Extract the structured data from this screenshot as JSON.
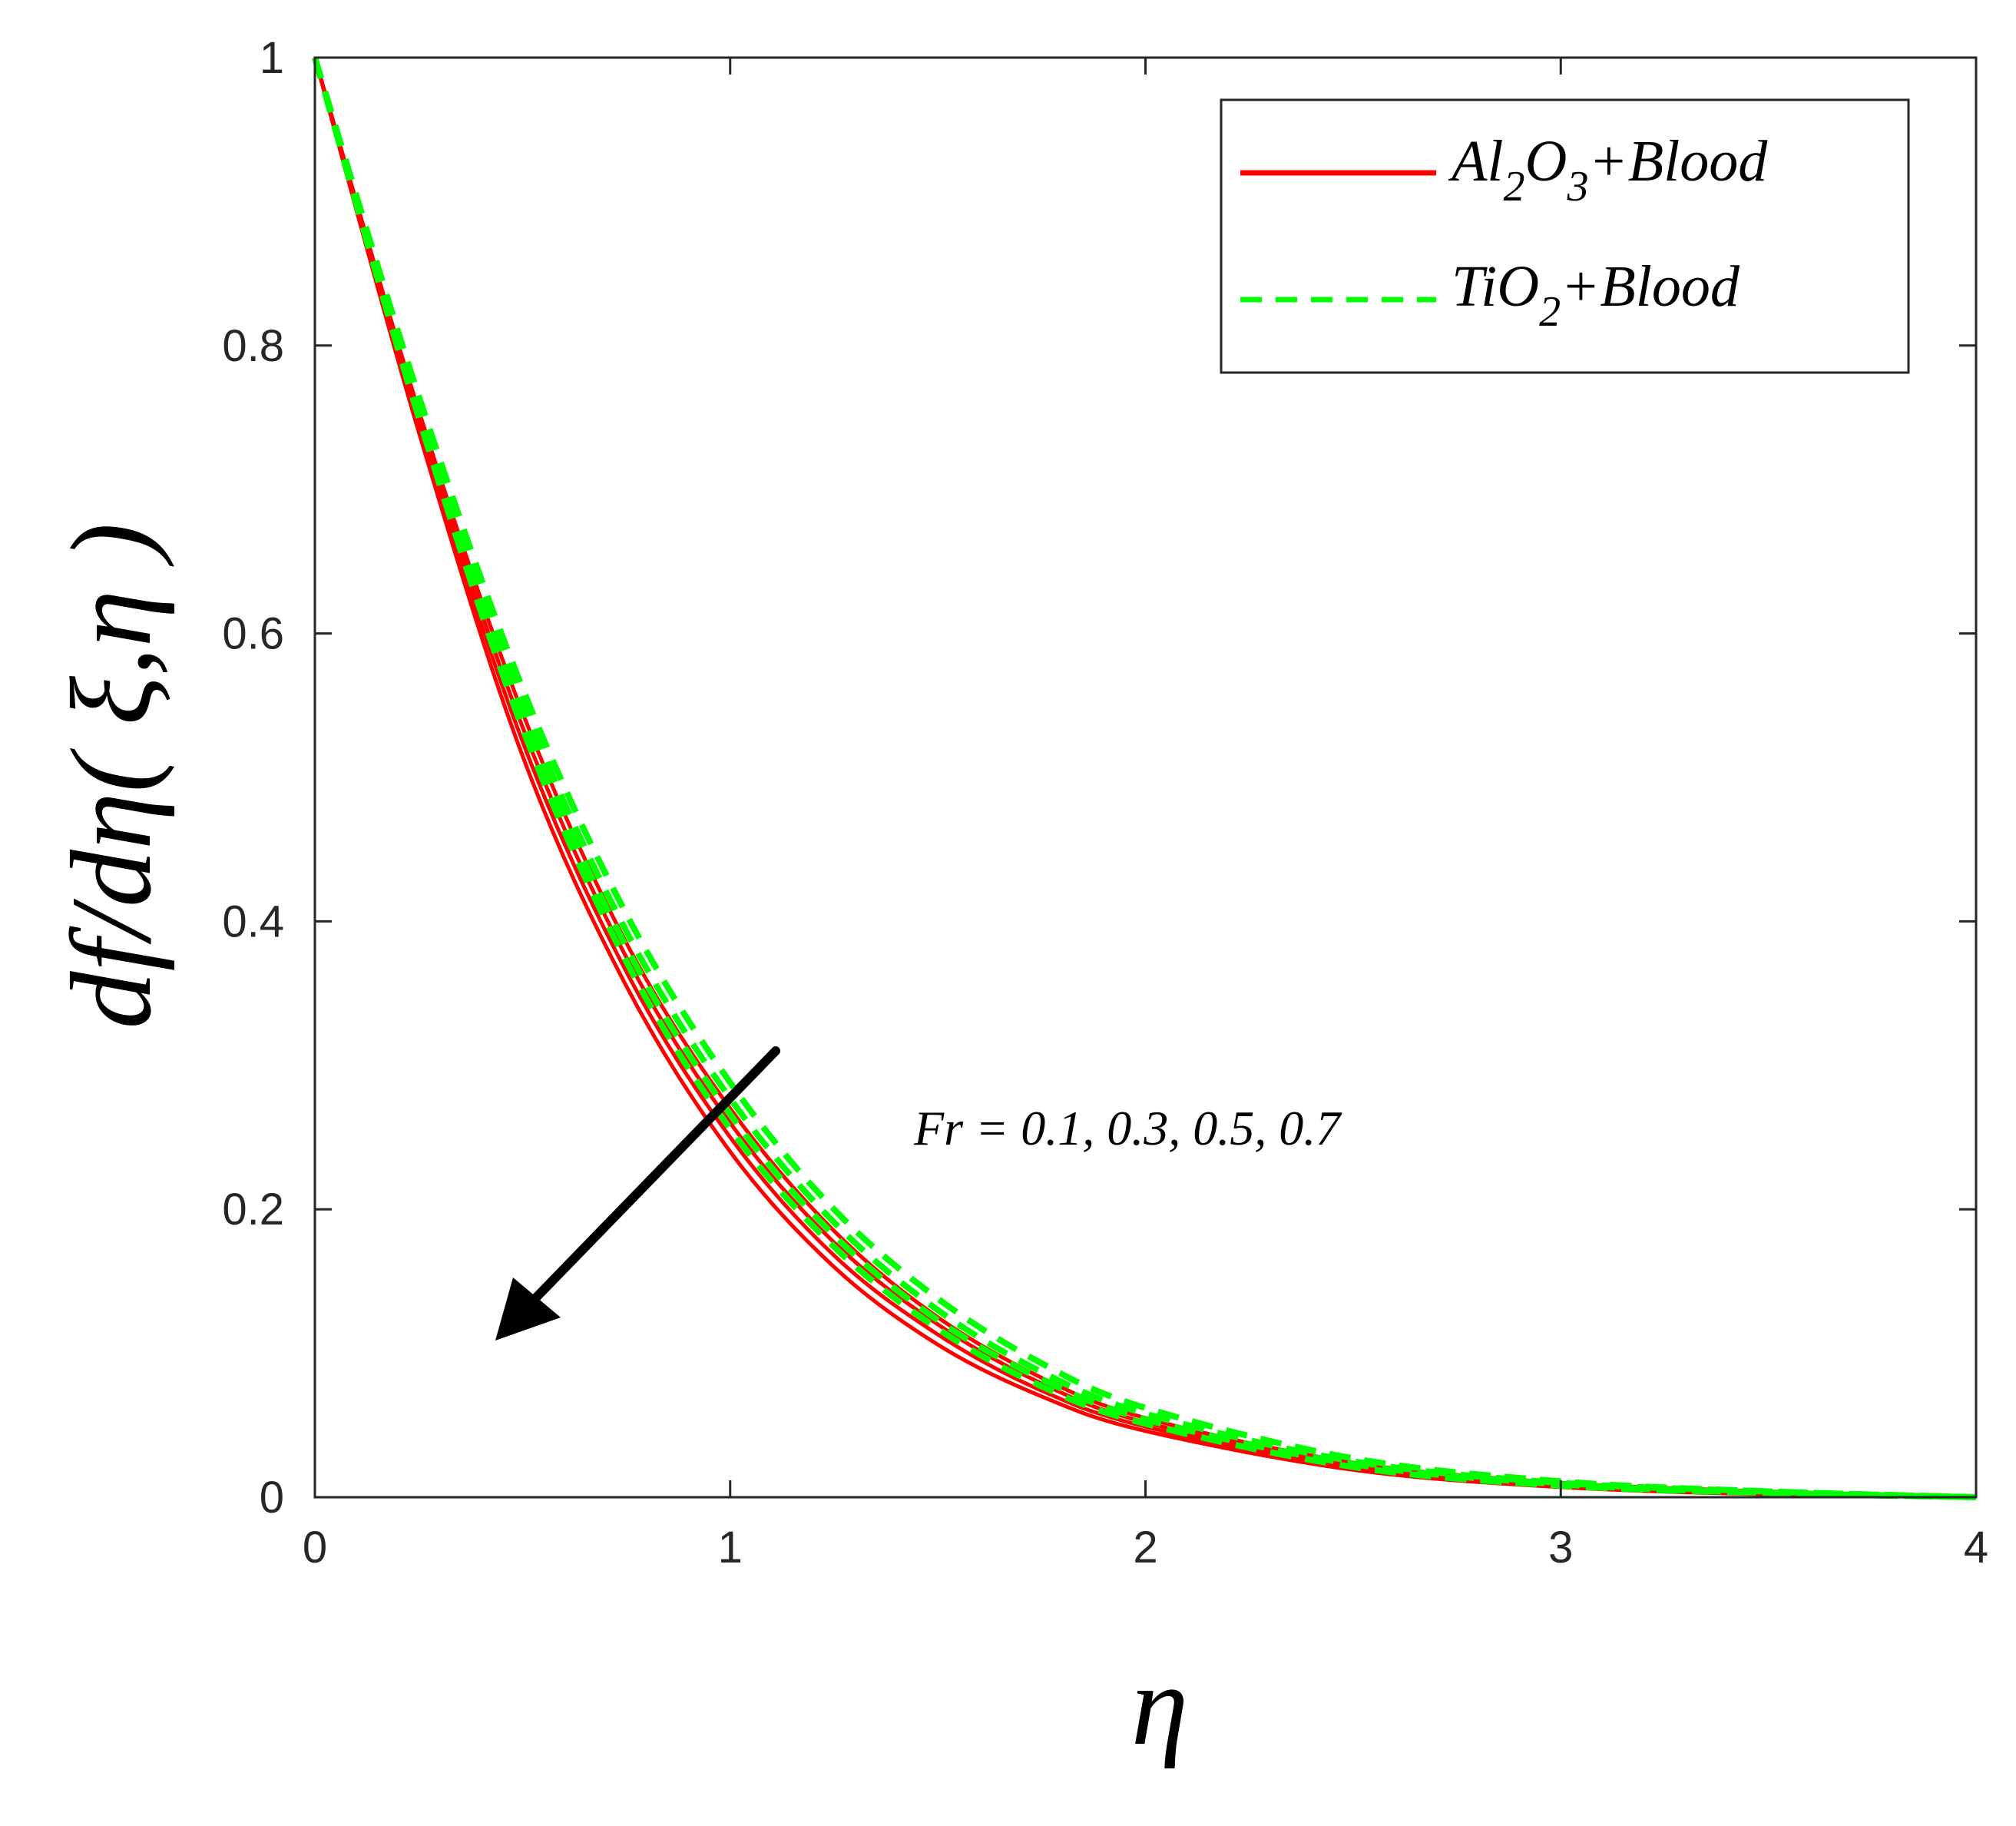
{
  "chart_data": {
    "type": "line",
    "xlabel": "η",
    "ylabel": "df/dη( ξ,η )",
    "xlim": [
      0,
      4
    ],
    "ylim": [
      0,
      1
    ],
    "x_ticks": [
      "0",
      "1",
      "2",
      "3",
      "4"
    ],
    "y_ticks": [
      "0",
      "0.2",
      "0.4",
      "0.6",
      "0.8",
      "1"
    ],
    "grid": false,
    "legend_position": "top-right",
    "legend": [
      {
        "label": "Al2O3+Blood",
        "color": "#ff0000",
        "style": "solid"
      },
      {
        "label": "TiO2+Blood",
        "color": "#00ff00",
        "style": "dashed"
      }
    ],
    "annotation": "Fr = 0.1, 0.3, 0.5, 0.7",
    "x": [
      0,
      0.25,
      0.5,
      0.75,
      1.0,
      1.25,
      1.5,
      1.75,
      2.0,
      2.5,
      3.0,
      3.5,
      4.0
    ],
    "series": [
      {
        "group": "Al2O3+Blood",
        "Fr": 0.1,
        "color": "#ff0000",
        "style": "solid",
        "values": [
          1.0,
          0.755,
          0.545,
          0.385,
          0.27,
          0.185,
          0.125,
          0.083,
          0.055,
          0.024,
          0.01,
          0.004,
          0.0
        ]
      },
      {
        "group": "Al2O3+Blood",
        "Fr": 0.3,
        "color": "#ff0000",
        "style": "solid",
        "values": [
          1.0,
          0.75,
          0.535,
          0.375,
          0.26,
          0.177,
          0.12,
          0.079,
          0.052,
          0.022,
          0.009,
          0.003,
          0.0
        ]
      },
      {
        "group": "Al2O3+Blood",
        "Fr": 0.5,
        "color": "#ff0000",
        "style": "solid",
        "values": [
          1.0,
          0.745,
          0.525,
          0.365,
          0.25,
          0.168,
          0.113,
          0.074,
          0.049,
          0.02,
          0.008,
          0.003,
          0.0
        ]
      },
      {
        "group": "Al2O3+Blood",
        "Fr": 0.7,
        "color": "#ff0000",
        "style": "solid",
        "values": [
          1.0,
          0.74,
          0.515,
          0.355,
          0.24,
          0.16,
          0.106,
          0.07,
          0.046,
          0.019,
          0.007,
          0.002,
          0.0
        ]
      },
      {
        "group": "TiO2+Blood",
        "Fr": 0.1,
        "color": "#00ff00",
        "style": "dashed",
        "values": [
          1.0,
          0.765,
          0.562,
          0.405,
          0.288,
          0.2,
          0.138,
          0.093,
          0.062,
          0.027,
          0.011,
          0.004,
          0.0
        ]
      },
      {
        "group": "TiO2+Blood",
        "Fr": 0.3,
        "color": "#00ff00",
        "style": "dashed",
        "values": [
          1.0,
          0.76,
          0.552,
          0.393,
          0.277,
          0.191,
          0.13,
          0.087,
          0.058,
          0.025,
          0.01,
          0.004,
          0.0
        ]
      },
      {
        "group": "TiO2+Blood",
        "Fr": 0.5,
        "color": "#00ff00",
        "style": "dashed",
        "values": [
          1.0,
          0.755,
          0.543,
          0.382,
          0.266,
          0.182,
          0.123,
          0.082,
          0.054,
          0.023,
          0.009,
          0.003,
          0.0
        ]
      },
      {
        "group": "TiO2+Blood",
        "Fr": 0.7,
        "color": "#00ff00",
        "style": "dashed",
        "values": [
          1.0,
          0.75,
          0.534,
          0.372,
          0.256,
          0.174,
          0.117,
          0.077,
          0.051,
          0.021,
          0.008,
          0.003,
          0.0
        ]
      }
    ]
  }
}
